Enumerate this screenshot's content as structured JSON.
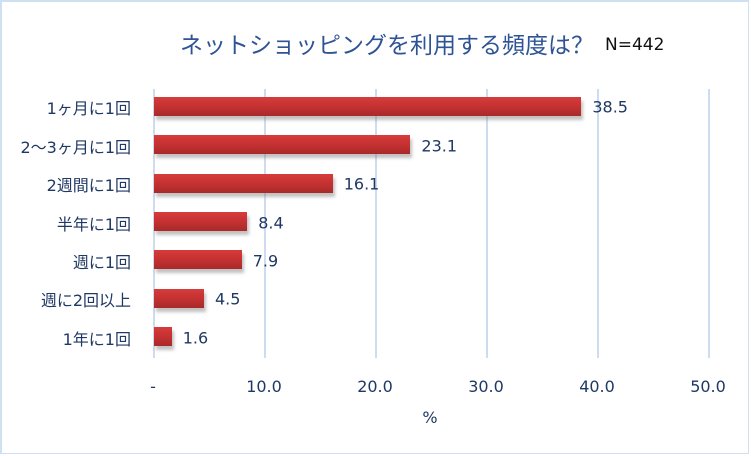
{
  "chart_data": {
    "type": "bar",
    "orientation": "horizontal",
    "title": "ネットショッピングを利用する頻度は？",
    "annotation": "N=442",
    "categories": [
      "1ヶ月に1回",
      "2〜3ヶ月に1回",
      "2週間に1回",
      "半年に1回",
      "週に1回",
      "週に2回以上",
      "1年に1回"
    ],
    "values": [
      38.5,
      23.1,
      16.1,
      8.4,
      7.9,
      4.5,
      1.6
    ],
    "value_labels": [
      "38.5",
      "23.1",
      "16.1",
      "8.4",
      "7.9",
      "4.5",
      "1.6"
    ],
    "xlabel": "%",
    "ylabel": "",
    "xlim": [
      0,
      50
    ],
    "x_ticks": [
      "-",
      "10.0",
      "20.0",
      "30.0",
      "40.0",
      "50.0"
    ],
    "grid": "vertical",
    "legend": "none",
    "bar_color": "#c83232"
  },
  "colors": {
    "title": "#2f5496",
    "text": "#1f3864",
    "grid": "#cdddef",
    "border": "#cfe0f3"
  }
}
